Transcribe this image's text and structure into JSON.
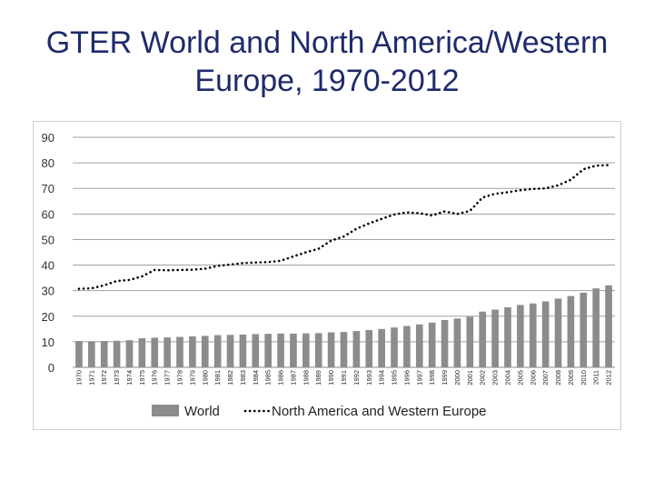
{
  "slide": {
    "title_line1": "GTER World and North America/Western",
    "title_line2": "Europe, 1970-2012"
  },
  "chart_data": {
    "type": "bar",
    "title": "GTER World and North America/Western Europe, 1970-2012",
    "xlabel": "",
    "ylabel": "",
    "ylim": [
      0,
      90
    ],
    "yticks": [
      0,
      10,
      20,
      30,
      40,
      50,
      60,
      70,
      80,
      90
    ],
    "grid": true,
    "legend_position": "bottom",
    "categories": [
      "1970",
      "1971",
      "1972",
      "1973",
      "1974",
      "1975",
      "1976",
      "1977",
      "1978",
      "1979",
      "1980",
      "1981",
      "1982",
      "1983",
      "1984",
      "1985",
      "1986",
      "1987",
      "1988",
      "1989",
      "1990",
      "1991",
      "1992",
      "1993",
      "1994",
      "1995",
      "1996",
      "1997",
      "1998",
      "1999",
      "2000",
      "2001",
      "2002",
      "2003",
      "2004",
      "2005",
      "2006",
      "2007",
      "2008",
      "2009",
      "2010",
      "2011",
      "2012"
    ],
    "series": [
      {
        "name": "World",
        "kind": "bar",
        "color": "#8c8c8c",
        "values": [
          10.3,
          10.2,
          10.3,
          10.4,
          10.6,
          11.4,
          11.6,
          11.7,
          11.9,
          12.1,
          12.3,
          12.6,
          12.7,
          12.8,
          13.0,
          13.1,
          13.2,
          13.2,
          13.3,
          13.4,
          13.7,
          13.8,
          14.2,
          14.6,
          15.0,
          15.6,
          16.2,
          16.8,
          17.5,
          18.5,
          19.1,
          19.8,
          21.8,
          22.6,
          23.5,
          24.4,
          25.0,
          25.8,
          26.9,
          27.9,
          29.2,
          30.9,
          32.1
        ]
      },
      {
        "name": "North America and Western Europe",
        "kind": "line",
        "style": "dotted",
        "color": "#000000",
        "values": [
          30.7,
          30.9,
          32.1,
          33.8,
          34.2,
          35.6,
          38.1,
          38.0,
          38.1,
          38.2,
          38.6,
          39.7,
          40.2,
          40.8,
          41.0,
          41.2,
          41.7,
          43.4,
          45.0,
          46.4,
          49.6,
          51.2,
          54.2,
          56.3,
          58.1,
          59.8,
          60.6,
          60.3,
          59.4,
          61.0,
          60.0,
          61.2,
          66.4,
          67.9,
          68.5,
          69.3,
          69.8,
          70.0,
          71.2,
          73.4,
          77.5,
          78.9,
          79.1
        ]
      }
    ]
  }
}
